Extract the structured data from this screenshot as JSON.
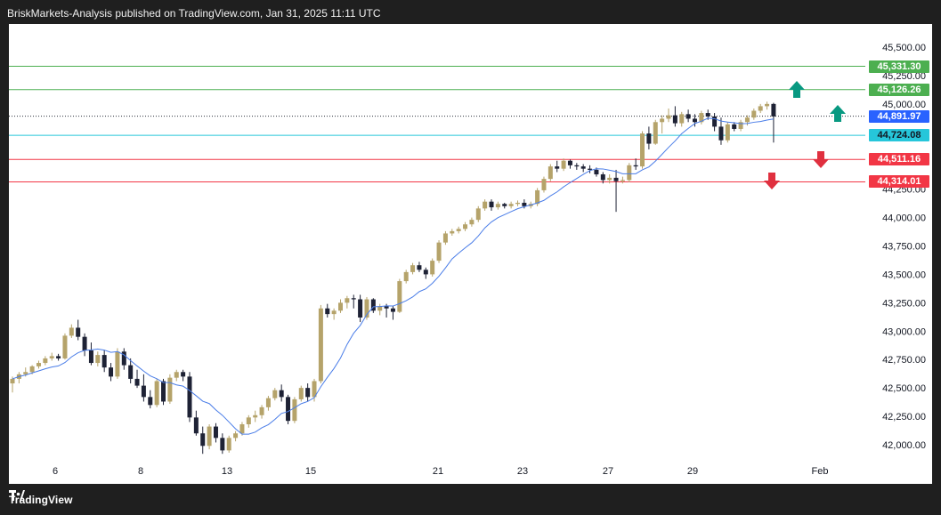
{
  "header": {
    "publisher_line": "BriskMarkets-Analysis published on TradingView.com, Jan 31, 2025 11:11 UTC"
  },
  "footer": {
    "brand": "TradingView",
    "logo_icon": "tradingview-logo-icon"
  },
  "price_axis": {
    "labels": [
      "45,500.00",
      "45,250.00",
      "45,000.00",
      "44,750.00",
      "44,500.00",
      "44,250.00",
      "44,000.00",
      "43,750.00",
      "43,500.00",
      "43,250.00",
      "43,000.00",
      "42,750.00",
      "42,500.00",
      "42,250.00",
      "42,000.00"
    ],
    "values": [
      45500,
      45250,
      45000,
      44750,
      44500,
      44250,
      44000,
      43750,
      43500,
      43250,
      43000,
      42750,
      42500,
      42250,
      42000
    ]
  },
  "time_axis": {
    "labels": [
      "6",
      "8",
      "13",
      "15",
      "21",
      "23",
      "27",
      "29",
      "Feb"
    ]
  },
  "levels": [
    {
      "label": "45,331.30",
      "value": 45331.3,
      "color": "#4caf50",
      "kind": "resistance-2"
    },
    {
      "label": "45,126.26",
      "value": 45126.26,
      "color": "#4caf50",
      "kind": "resistance-1"
    },
    {
      "label": "44,891.97",
      "value": 44891.97,
      "color": "#2962ff",
      "kind": "current-price"
    },
    {
      "label": "44,724.08",
      "value": 44724.08,
      "color": "#26c6da",
      "kind": "pivot"
    },
    {
      "label": "44,511.16",
      "value": 44511.16,
      "color": "#f23645",
      "kind": "support-1"
    },
    {
      "label": "44,314.01",
      "value": 44314.01,
      "color": "#f23645",
      "kind": "support-2"
    }
  ],
  "colors": {
    "up_candle": "#b5a36a",
    "down_candle": "#1e2235",
    "moving_average": "#4a7de8",
    "arrow_up": "#089981",
    "arrow_down": "#e0303f",
    "grid": "#f0f3fa"
  },
  "arrows": [
    {
      "icon": "arrow-up-icon",
      "direction": "up"
    },
    {
      "icon": "arrow-up-icon",
      "direction": "up"
    },
    {
      "icon": "arrow-down-icon",
      "direction": "down"
    },
    {
      "icon": "arrow-down-icon",
      "direction": "down"
    }
  ],
  "chart_data": {
    "type": "candlestick",
    "ylim": [
      41950,
      45600
    ],
    "grid": false,
    "candles": [
      [
        42540,
        42600,
        42460,
        42580
      ],
      [
        42580,
        42640,
        42540,
        42620
      ],
      [
        42620,
        42680,
        42600,
        42640
      ],
      [
        42640,
        42700,
        42620,
        42690
      ],
      [
        42690,
        42740,
        42670,
        42720
      ],
      [
        42720,
        42780,
        42700,
        42760
      ],
      [
        42760,
        42810,
        42740,
        42780
      ],
      [
        42780,
        42800,
        42740,
        42760
      ],
      [
        42760,
        42980,
        42750,
        42960
      ],
      [
        42960,
        43060,
        42940,
        43030
      ],
      [
        43030,
        43100,
        42920,
        42950
      ],
      [
        42950,
        42980,
        42780,
        42830
      ],
      [
        42830,
        42900,
        42700,
        42720
      ],
      [
        42720,
        42820,
        42690,
        42790
      ],
      [
        42790,
        42830,
        42640,
        42680
      ],
      [
        42680,
        42720,
        42560,
        42600
      ],
      [
        42600,
        42850,
        42580,
        42820
      ],
      [
        42820,
        42850,
        42660,
        42700
      ],
      [
        42700,
        42760,
        42540,
        42580
      ],
      [
        42580,
        42660,
        42500,
        42520
      ],
      [
        42520,
        42620,
        42380,
        42420
      ],
      [
        42420,
        42480,
        42320,
        42350
      ],
      [
        42350,
        42580,
        42330,
        42560
      ],
      [
        42560,
        42580,
        42350,
        42380
      ],
      [
        42380,
        42620,
        42360,
        42590
      ],
      [
        42590,
        42660,
        42560,
        42640
      ],
      [
        42640,
        42660,
        42560,
        42600
      ],
      [
        42600,
        42640,
        42200,
        42240
      ],
      [
        42240,
        42300,
        42080,
        42100
      ],
      [
        42100,
        42160,
        41920,
        41990
      ],
      [
        41990,
        42180,
        41960,
        42160
      ],
      [
        42160,
        42190,
        42020,
        42060
      ],
      [
        42060,
        42100,
        41920,
        41950
      ],
      [
        41950,
        42080,
        41930,
        42060
      ],
      [
        42060,
        42120,
        42030,
        42100
      ],
      [
        42100,
        42200,
        42080,
        42180
      ],
      [
        42180,
        42260,
        42150,
        42240
      ],
      [
        42240,
        42300,
        42200,
        42260
      ],
      [
        42260,
        42350,
        42230,
        42330
      ],
      [
        42330,
        42430,
        42300,
        42410
      ],
      [
        42410,
        42500,
        42390,
        42480
      ],
      [
        42480,
        42530,
        42380,
        42420
      ],
      [
        42420,
        42440,
        42180,
        42210
      ],
      [
        42210,
        42420,
        42190,
        42400
      ],
      [
        42400,
        42520,
        42380,
        42500
      ],
      [
        42500,
        42540,
        42380,
        42420
      ],
      [
        42420,
        42580,
        42380,
        42560
      ],
      [
        42560,
        43230,
        42540,
        43200
      ],
      [
        43200,
        43240,
        43120,
        43150
      ],
      [
        43150,
        43200,
        43100,
        43180
      ],
      [
        43180,
        43280,
        43160,
        43250
      ],
      [
        43250,
        43310,
        43200,
        43290
      ],
      [
        43290,
        43320,
        43200,
        43280
      ],
      [
        43280,
        43320,
        43080,
        43120
      ],
      [
        43120,
        43300,
        43100,
        43280
      ],
      [
        43280,
        43290,
        43160,
        43180
      ],
      [
        43180,
        43240,
        43140,
        43220
      ],
      [
        43220,
        43240,
        43120,
        43200
      ],
      [
        43200,
        43220,
        43100,
        43170
      ],
      [
        43170,
        43460,
        43160,
        43440
      ],
      [
        43440,
        43540,
        43420,
        43520
      ],
      [
        43520,
        43600,
        43500,
        43580
      ],
      [
        43580,
        43610,
        43520,
        43540
      ],
      [
        43540,
        43560,
        43460,
        43500
      ],
      [
        43500,
        43640,
        43480,
        43620
      ],
      [
        43620,
        43800,
        43600,
        43780
      ],
      [
        43780,
        43880,
        43760,
        43860
      ],
      [
        43860,
        43900,
        43840,
        43880
      ],
      [
        43880,
        43920,
        43860,
        43900
      ],
      [
        43900,
        43960,
        43880,
        43940
      ],
      [
        43940,
        44000,
        43920,
        43980
      ],
      [
        43980,
        44100,
        43960,
        44080
      ],
      [
        44080,
        44160,
        44060,
        44140
      ],
      [
        44140,
        44160,
        44060,
        44090
      ],
      [
        44090,
        44140,
        44070,
        44120
      ],
      [
        44120,
        44130,
        44080,
        44100
      ],
      [
        44100,
        44140,
        44080,
        44120
      ],
      [
        44120,
        44150,
        44100,
        44130
      ],
      [
        44130,
        44160,
        44080,
        44100
      ],
      [
        44100,
        44140,
        44080,
        44120
      ],
      [
        44120,
        44260,
        44100,
        44240
      ],
      [
        44240,
        44360,
        44220,
        44340
      ],
      [
        44340,
        44470,
        44320,
        44450
      ],
      [
        44450,
        44500,
        44400,
        44430
      ],
      [
        44430,
        44520,
        44410,
        44500
      ],
      [
        44500,
        44510,
        44430,
        44460
      ],
      [
        44460,
        44480,
        44420,
        44450
      ],
      [
        44450,
        44470,
        44400,
        44430
      ],
      [
        44430,
        44460,
        44390,
        44420
      ],
      [
        44420,
        44440,
        44360,
        44380
      ],
      [
        44380,
        44400,
        44300,
        44330
      ],
      [
        44330,
        44380,
        44300,
        44350
      ],
      [
        44350,
        44420,
        44050,
        44320
      ],
      [
        44320,
        44360,
        44300,
        44330
      ],
      [
        44330,
        44480,
        44310,
        44460
      ],
      [
        44460,
        44520,
        44420,
        44450
      ],
      [
        44450,
        44760,
        44430,
        44740
      ],
      [
        44740,
        44800,
        44600,
        44650
      ],
      [
        44650,
        44860,
        44640,
        44840
      ],
      [
        44840,
        44900,
        44740,
        44870
      ],
      [
        44870,
        44960,
        44840,
        44900
      ],
      [
        44900,
        44980,
        44800,
        44830
      ],
      [
        44830,
        44930,
        44800,
        44910
      ],
      [
        44910,
        44950,
        44840,
        44870
      ],
      [
        44870,
        44910,
        44800,
        44840
      ],
      [
        44840,
        44940,
        44820,
        44920
      ],
      [
        44920,
        44950,
        44860,
        44890
      ],
      [
        44890,
        44920,
        44760,
        44800
      ],
      [
        44800,
        44880,
        44640,
        44680
      ],
      [
        44680,
        44840,
        44660,
        44820
      ],
      [
        44820,
        44840,
        44760,
        44780
      ],
      [
        44780,
        44860,
        44760,
        44840
      ],
      [
        44840,
        44900,
        44810,
        44880
      ],
      [
        44880,
        44960,
        44860,
        44940
      ],
      [
        44940,
        45000,
        44920,
        44980
      ],
      [
        44980,
        45020,
        44950,
        45000
      ],
      [
        45000,
        45010,
        44660,
        44890
      ]
    ]
  }
}
